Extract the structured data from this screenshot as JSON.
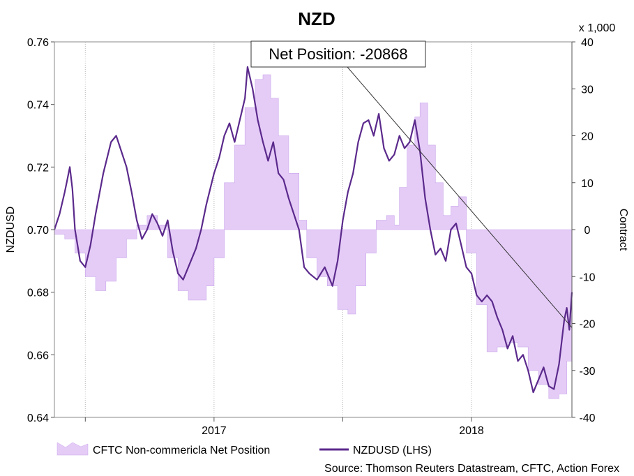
{
  "chart_data": {
    "type": "line",
    "title": "NZD",
    "left_axis": {
      "label": "NZDUSD",
      "range": [
        0.64,
        0.76
      ],
      "ticks": [
        "0.64",
        "0.66",
        "0.68",
        "0.70",
        "0.72",
        "0.74",
        "0.76"
      ]
    },
    "right_axis": {
      "label": "Contract",
      "multiplier": "x 1,000",
      "range": [
        -40,
        40
      ],
      "ticks": [
        "-40",
        "-30",
        "-20",
        "-10",
        "0",
        "10",
        "20",
        "30",
        "40"
      ]
    },
    "x_axis": {
      "range": [
        "2016-05",
        "2018-06"
      ],
      "tick_labels": [
        {
          "label": "2017",
          "date": 2017.0
        },
        {
          "label": "2018",
          "date": 2018.0
        }
      ],
      "gridline_dates": [
        2016.5,
        2017.5
      ]
    },
    "annotation": {
      "text": "Net Position: -20868",
      "points_to": {
        "date": 2018.39,
        "value": -20.868
      }
    },
    "series": [
      {
        "name": "CFTC Non-commericla Net Position",
        "axis": "right",
        "style": "area",
        "color": "#e5ccf7",
        "points": [
          [
            2016.38,
            -1
          ],
          [
            2016.42,
            -2
          ],
          [
            2016.46,
            -5
          ],
          [
            2016.5,
            -10
          ],
          [
            2016.54,
            -13
          ],
          [
            2016.58,
            -11
          ],
          [
            2016.62,
            -6
          ],
          [
            2016.66,
            -2
          ],
          [
            2016.7,
            1
          ],
          [
            2016.74,
            3
          ],
          [
            2016.78,
            1
          ],
          [
            2016.82,
            -6
          ],
          [
            2016.86,
            -13
          ],
          [
            2016.9,
            -15
          ],
          [
            2016.94,
            -15
          ],
          [
            2016.97,
            -12
          ],
          [
            2017.0,
            -6
          ],
          [
            2017.04,
            10
          ],
          [
            2017.08,
            18
          ],
          [
            2017.12,
            26
          ],
          [
            2017.16,
            32
          ],
          [
            2017.19,
            33
          ],
          [
            2017.22,
            28
          ],
          [
            2017.25,
            20
          ],
          [
            2017.29,
            12
          ],
          [
            2017.33,
            2
          ],
          [
            2017.36,
            -6
          ],
          [
            2017.4,
            -10
          ],
          [
            2017.44,
            -12
          ],
          [
            2017.48,
            -17
          ],
          [
            2017.52,
            -18
          ],
          [
            2017.55,
            -12
          ],
          [
            2017.59,
            -5
          ],
          [
            2017.63,
            2
          ],
          [
            2017.67,
            3
          ],
          [
            2017.7,
            1
          ],
          [
            2017.72,
            9
          ],
          [
            2017.75,
            18
          ],
          [
            2017.78,
            24
          ],
          [
            2017.8,
            27
          ],
          [
            2017.83,
            18
          ],
          [
            2017.86,
            10
          ],
          [
            2017.89,
            3
          ],
          [
            2017.92,
            5
          ],
          [
            2017.95,
            7
          ],
          [
            2017.98,
            -5
          ],
          [
            2018.02,
            -16
          ],
          [
            2018.06,
            -26
          ],
          [
            2018.1,
            -25
          ],
          [
            2018.14,
            -24
          ],
          [
            2018.18,
            -25
          ],
          [
            2018.22,
            -30
          ],
          [
            2018.26,
            -33
          ],
          [
            2018.3,
            -36
          ],
          [
            2018.34,
            -35
          ],
          [
            2018.37,
            -28
          ],
          [
            2018.39,
            -21
          ]
        ]
      },
      {
        "name": "NZDUSD (LHS)",
        "axis": "left",
        "style": "line",
        "color": "#5b2a8c",
        "points": [
          [
            2016.38,
            0.7
          ],
          [
            2016.4,
            0.705
          ],
          [
            2016.42,
            0.712
          ],
          [
            2016.43,
            0.716
          ],
          [
            2016.44,
            0.72
          ],
          [
            2016.45,
            0.713
          ],
          [
            2016.46,
            0.7
          ],
          [
            2016.48,
            0.69
          ],
          [
            2016.5,
            0.688
          ],
          [
            2016.52,
            0.695
          ],
          [
            2016.54,
            0.705
          ],
          [
            2016.57,
            0.718
          ],
          [
            2016.6,
            0.728
          ],
          [
            2016.62,
            0.73
          ],
          [
            2016.64,
            0.725
          ],
          [
            2016.66,
            0.72
          ],
          [
            2016.68,
            0.712
          ],
          [
            2016.7,
            0.703
          ],
          [
            2016.72,
            0.697
          ],
          [
            2016.74,
            0.7
          ],
          [
            2016.76,
            0.705
          ],
          [
            2016.78,
            0.702
          ],
          [
            2016.8,
            0.698
          ],
          [
            2016.82,
            0.703
          ],
          [
            2016.84,
            0.693
          ],
          [
            2016.86,
            0.686
          ],
          [
            2016.88,
            0.684
          ],
          [
            2016.9,
            0.688
          ],
          [
            2016.93,
            0.694
          ],
          [
            2016.95,
            0.7
          ],
          [
            2016.97,
            0.708
          ],
          [
            2017.0,
            0.718
          ],
          [
            2017.02,
            0.723
          ],
          [
            2017.04,
            0.73
          ],
          [
            2017.06,
            0.734
          ],
          [
            2017.08,
            0.728
          ],
          [
            2017.1,
            0.735
          ],
          [
            2017.12,
            0.742
          ],
          [
            2017.13,
            0.752
          ],
          [
            2017.15,
            0.745
          ],
          [
            2017.17,
            0.735
          ],
          [
            2017.19,
            0.728
          ],
          [
            2017.21,
            0.722
          ],
          [
            2017.23,
            0.728
          ],
          [
            2017.25,
            0.718
          ],
          [
            2017.27,
            0.716
          ],
          [
            2017.29,
            0.71
          ],
          [
            2017.31,
            0.705
          ],
          [
            2017.33,
            0.7
          ],
          [
            2017.35,
            0.688
          ],
          [
            2017.37,
            0.686
          ],
          [
            2017.4,
            0.684
          ],
          [
            2017.43,
            0.688
          ],
          [
            2017.46,
            0.682
          ],
          [
            2017.48,
            0.69
          ],
          [
            2017.5,
            0.703
          ],
          [
            2017.52,
            0.712
          ],
          [
            2017.54,
            0.718
          ],
          [
            2017.56,
            0.728
          ],
          [
            2017.58,
            0.734
          ],
          [
            2017.6,
            0.735
          ],
          [
            2017.62,
            0.73
          ],
          [
            2017.64,
            0.737
          ],
          [
            2017.66,
            0.726
          ],
          [
            2017.68,
            0.722
          ],
          [
            2017.7,
            0.724
          ],
          [
            2017.72,
            0.73
          ],
          [
            2017.74,
            0.726
          ],
          [
            2017.76,
            0.728
          ],
          [
            2017.78,
            0.735
          ],
          [
            2017.8,
            0.725
          ],
          [
            2017.82,
            0.71
          ],
          [
            2017.84,
            0.7
          ],
          [
            2017.86,
            0.692
          ],
          [
            2017.88,
            0.694
          ],
          [
            2017.9,
            0.69
          ],
          [
            2017.92,
            0.7
          ],
          [
            2017.94,
            0.702
          ],
          [
            2017.96,
            0.695
          ],
          [
            2017.98,
            0.688
          ],
          [
            2018.0,
            0.686
          ],
          [
            2018.02,
            0.679
          ],
          [
            2018.04,
            0.677
          ],
          [
            2018.06,
            0.679
          ],
          [
            2018.08,
            0.677
          ],
          [
            2018.1,
            0.672
          ],
          [
            2018.12,
            0.668
          ],
          [
            2018.14,
            0.662
          ],
          [
            2018.16,
            0.666
          ],
          [
            2018.18,
            0.658
          ],
          [
            2018.2,
            0.66
          ],
          [
            2018.22,
            0.655
          ],
          [
            2018.24,
            0.648
          ],
          [
            2018.26,
            0.652
          ],
          [
            2018.28,
            0.656
          ],
          [
            2018.3,
            0.65
          ],
          [
            2018.32,
            0.649
          ],
          [
            2018.34,
            0.657
          ],
          [
            2018.36,
            0.671
          ],
          [
            2018.37,
            0.675
          ],
          [
            2018.38,
            0.668
          ],
          [
            2018.39,
            0.68
          ]
        ]
      }
    ],
    "legend": {
      "placement": "bottom-left",
      "entries": [
        "CFTC Non-commericla Net Position",
        "NZDUSD (LHS)"
      ]
    },
    "source": "Source: Thomson Reuters Datastream, CFTC, Action Forex"
  }
}
